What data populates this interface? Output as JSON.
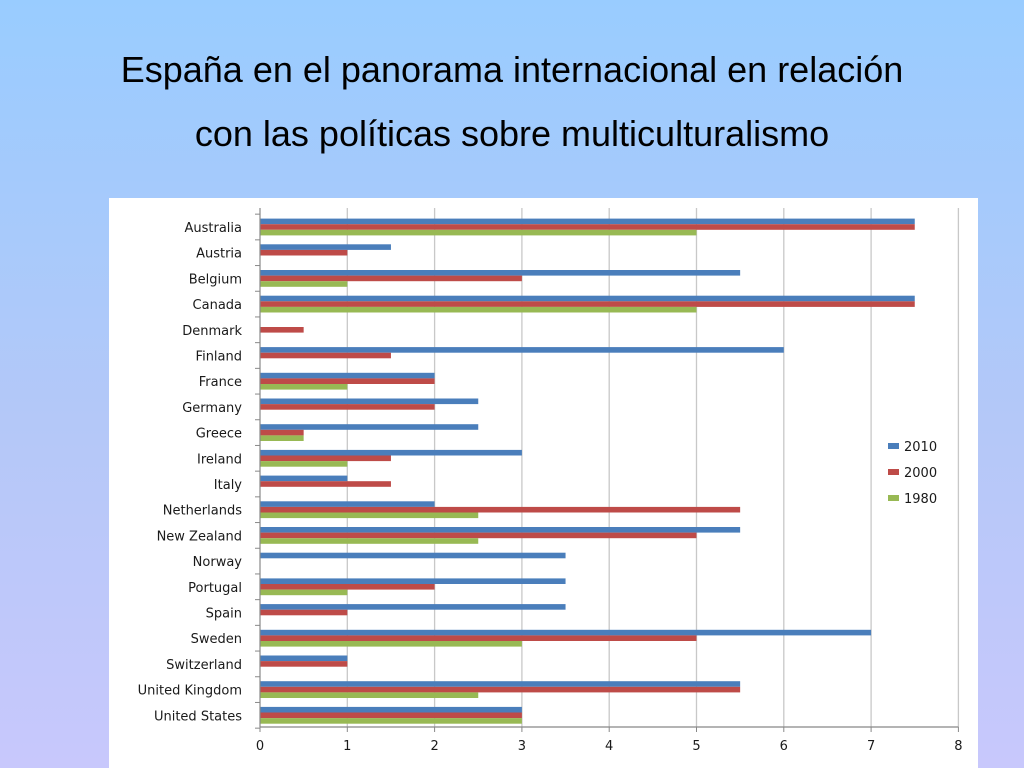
{
  "slide": {
    "title_line1": "España en el panorama internacional en relación",
    "title_line2": "con las políticas sobre multiculturalismo"
  },
  "chart_data": {
    "type": "bar",
    "orientation": "horizontal",
    "title": "",
    "xlabel": "",
    "ylabel": "",
    "xlim": [
      0,
      8
    ],
    "x_ticks": [
      0,
      1,
      2,
      3,
      4,
      5,
      6,
      7,
      8
    ],
    "grid": "vertical",
    "legend_position": "right",
    "categories": [
      "Australia",
      "Austria",
      "Belgium",
      "Canada",
      "Denmark",
      "Finland",
      "France",
      "Germany",
      "Greece",
      "Ireland",
      "Italy",
      "Netherlands",
      "New Zealand",
      "Norway",
      "Portugal",
      "Spain",
      "Sweden",
      "Switzerland",
      "United Kingdom",
      "United States"
    ],
    "series": [
      {
        "name": "2010",
        "color": "#4a7ebb",
        "values": [
          7.5,
          1.5,
          5.5,
          7.5,
          0,
          6,
          2,
          2.5,
          2.5,
          3,
          1,
          2,
          5.5,
          3.5,
          3.5,
          3.5,
          7,
          1,
          5.5,
          3
        ]
      },
      {
        "name": "2000",
        "color": "#be4b48",
        "values": [
          7.5,
          1,
          3,
          7.5,
          0.5,
          1.5,
          2,
          2,
          0.5,
          1.5,
          1.5,
          5.5,
          5,
          0,
          2,
          1,
          5,
          1,
          5.5,
          3
        ]
      },
      {
        "name": "1980",
        "color": "#98b954",
        "values": [
          5,
          0,
          1,
          5,
          0,
          0,
          1,
          0,
          0.5,
          1,
          0,
          2.5,
          2.5,
          0,
          1,
          0,
          3,
          0,
          2.5,
          3
        ]
      }
    ]
  }
}
